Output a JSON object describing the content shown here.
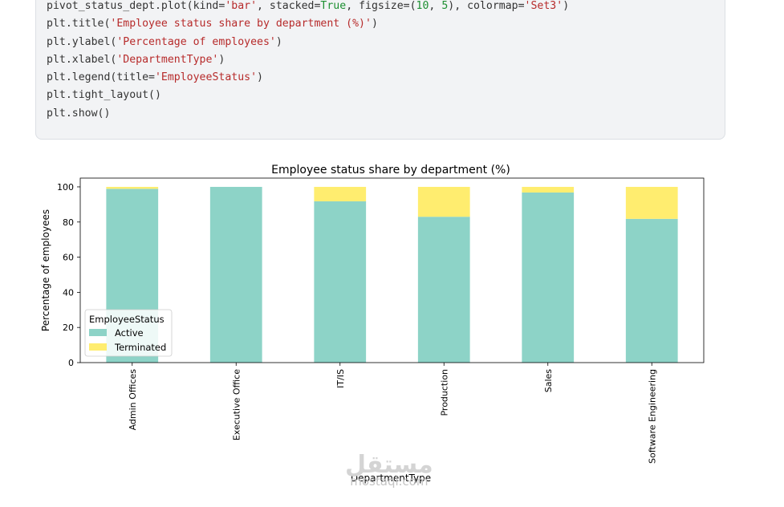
{
  "code": {
    "lines": [
      [
        {
          "t": "pivot_status_dept.plot(kind=",
          "c": ""
        },
        {
          "t": "'bar'",
          "c": "str"
        },
        {
          "t": ", stacked=",
          "c": ""
        },
        {
          "t": "True",
          "c": "kw"
        },
        {
          "t": ", figsize=(",
          "c": ""
        },
        {
          "t": "10",
          "c": "num"
        },
        {
          "t": ", ",
          "c": ""
        },
        {
          "t": "5",
          "c": "num"
        },
        {
          "t": "), colormap=",
          "c": ""
        },
        {
          "t": "'Set3'",
          "c": "str"
        },
        {
          "t": ")",
          "c": ""
        }
      ],
      [
        {
          "t": "plt.title(",
          "c": ""
        },
        {
          "t": "'Employee status share by department (%)'",
          "c": "str"
        },
        {
          "t": ")",
          "c": ""
        }
      ],
      [
        {
          "t": "plt.ylabel(",
          "c": ""
        },
        {
          "t": "'Percentage of employees'",
          "c": "str"
        },
        {
          "t": ")",
          "c": ""
        }
      ],
      [
        {
          "t": "plt.xlabel(",
          "c": ""
        },
        {
          "t": "'DepartmentType'",
          "c": "str"
        },
        {
          "t": ")",
          "c": ""
        }
      ],
      [
        {
          "t": "plt.legend(title=",
          "c": ""
        },
        {
          "t": "'EmployeeStatus'",
          "c": "str"
        },
        {
          "t": ")",
          "c": ""
        }
      ],
      [
        {
          "t": "plt.tight_layout()",
          "c": ""
        }
      ],
      [
        {
          "t": "plt.show()",
          "c": ""
        }
      ]
    ]
  },
  "chart_data": {
    "type": "bar",
    "stacked": true,
    "title": "Employee status share by department (%)",
    "xlabel": "DepartmentType",
    "ylabel": "Percentage of employees",
    "ylim": [
      0,
      105
    ],
    "yticks": [
      0,
      20,
      40,
      60,
      80,
      100
    ],
    "categories": [
      "Admin Offices",
      "Executive Office",
      "IT/IS",
      "Production",
      "Sales",
      "Software Engineering"
    ],
    "series": [
      {
        "name": "Active",
        "values": [
          98.9,
          100,
          91.8,
          83.0,
          96.8,
          81.8
        ],
        "color": "#8dd3c7"
      },
      {
        "name": "Terminated",
        "values": [
          1.1,
          0,
          8.2,
          17.0,
          3.2,
          18.2
        ],
        "color": "#ffed6f"
      }
    ],
    "legend": {
      "title": "EmployeeStatus",
      "position": "lower left"
    },
    "grid": false
  },
  "watermark": {
    "arabic": "مستقل",
    "latin": "mostaql.com"
  }
}
